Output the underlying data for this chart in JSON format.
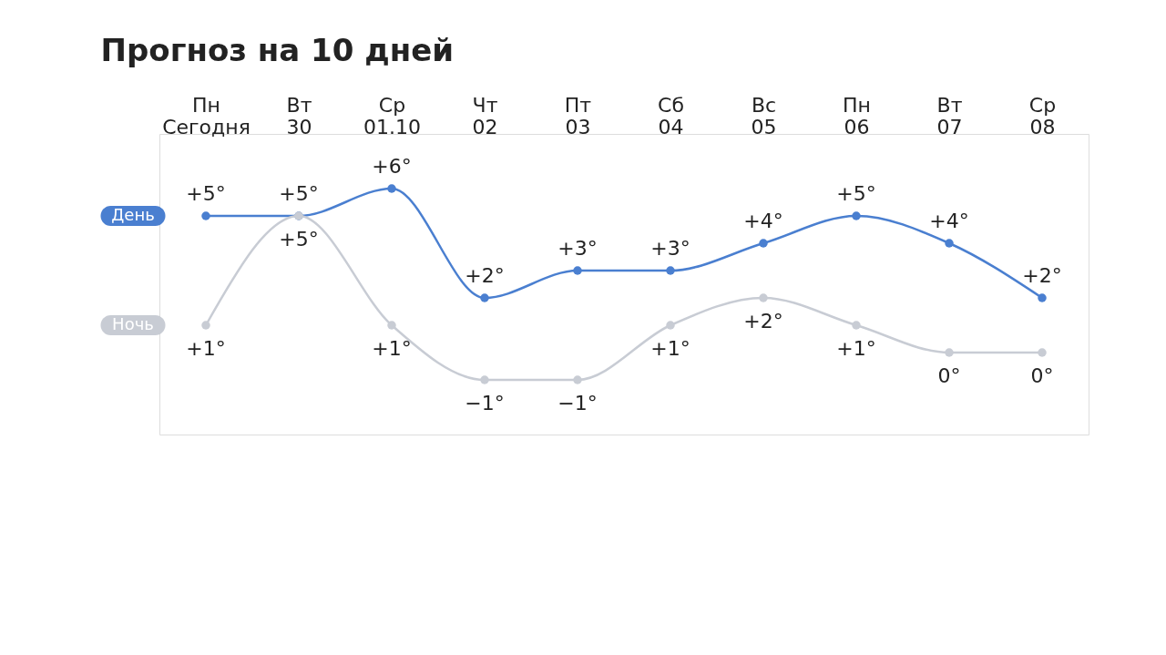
{
  "chart_data": {
    "type": "line",
    "title": "Прогноз на 10 дней",
    "categories": [
      "Пн\nСегодня",
      "Вт\n30",
      "Ср\n01.10",
      "Чт\n02",
      "Пт\n03",
      "Сб\n04",
      "Вс\n05",
      "Пн\n06",
      "Вт\n07",
      "Ср\n08"
    ],
    "series": [
      {
        "name": "День",
        "color": "#4a7fd0",
        "values": [
          5,
          5,
          6,
          2,
          3,
          3,
          4,
          5,
          4,
          2
        ],
        "value_labels": [
          "+5°",
          "+5°",
          "+6°",
          "+2°",
          "+3°",
          "+3°",
          "+4°",
          "+5°",
          "+4°",
          "+2°"
        ]
      },
      {
        "name": "Ночь",
        "color": "#c8ccd4",
        "values": [
          1,
          5,
          1,
          -1,
          -1,
          1,
          2,
          1,
          0,
          0
        ],
        "value_labels": [
          "+1°",
          "+5°",
          "+1°",
          "−1°",
          "−1°",
          "+1°",
          "+2°",
          "+1°",
          "0°",
          "0°"
        ]
      }
    ],
    "ylim": [
      -3,
      8
    ],
    "tick_labels": "x",
    "marker": "circle",
    "line_style": "solid",
    "grid": false
  }
}
